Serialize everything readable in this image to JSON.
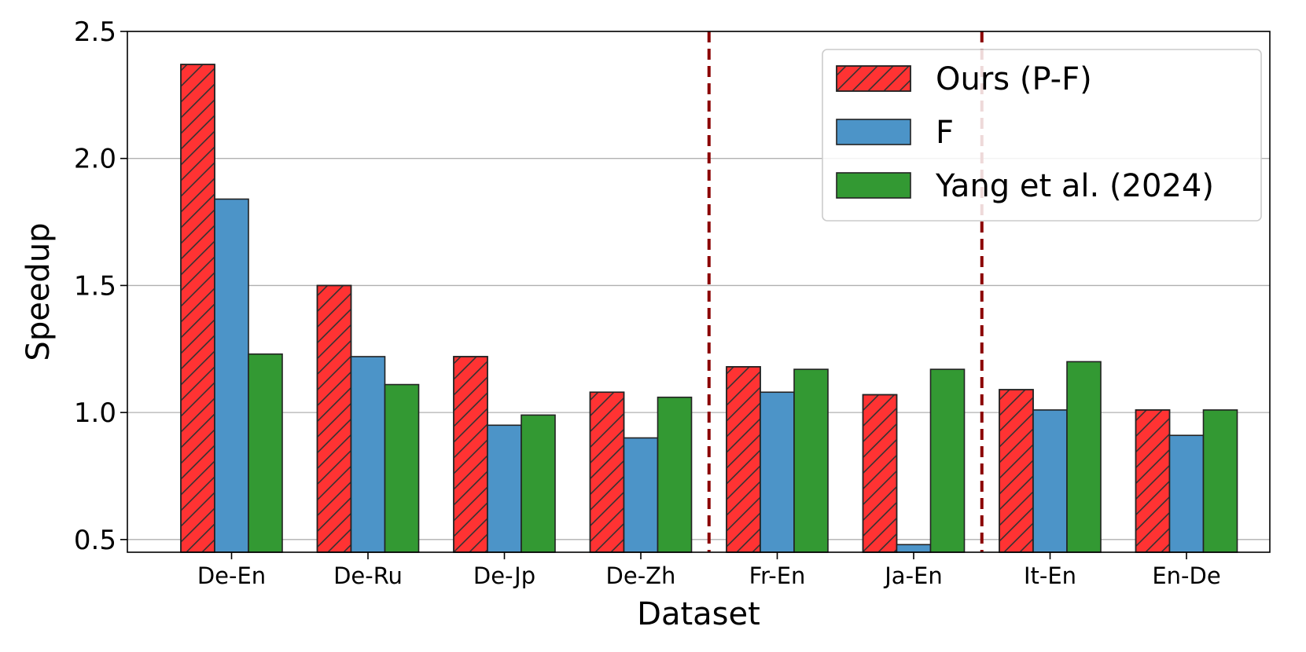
{
  "chart_data": {
    "type": "bar",
    "title": "",
    "xlabel": "Dataset",
    "ylabel": "Speedup",
    "categories": [
      "De-En",
      "De-Ru",
      "De-Jp",
      "De-Zh",
      "Fr-En",
      "Ja-En",
      "It-En",
      "En-De"
    ],
    "series": [
      {
        "name": "Ours (P-F)",
        "values": [
          2.37,
          1.5,
          1.22,
          1.08,
          1.18,
          1.07,
          1.09,
          1.01
        ],
        "color": "#ff3333",
        "hatch": true
      },
      {
        "name": "F",
        "values": [
          1.84,
          1.22,
          0.95,
          0.9,
          1.08,
          0.48,
          1.01,
          0.91
        ],
        "color": "#4c94c8",
        "hatch": false
      },
      {
        "name": "Yang et al. (2024)",
        "values": [
          1.23,
          1.11,
          0.99,
          1.06,
          1.17,
          1.17,
          1.2,
          1.01
        ],
        "color": "#339933",
        "hatch": false
      }
    ],
    "ylim": [
      0.45,
      2.5
    ],
    "yticks": [
      "0.5",
      "1.0",
      "1.5",
      "2.0",
      "2.5"
    ],
    "grid": "y",
    "legend_position": "top-right",
    "separators_after_category": [
      "De-Zh",
      "Ja-En"
    ],
    "separator_color": "#8b0000"
  }
}
